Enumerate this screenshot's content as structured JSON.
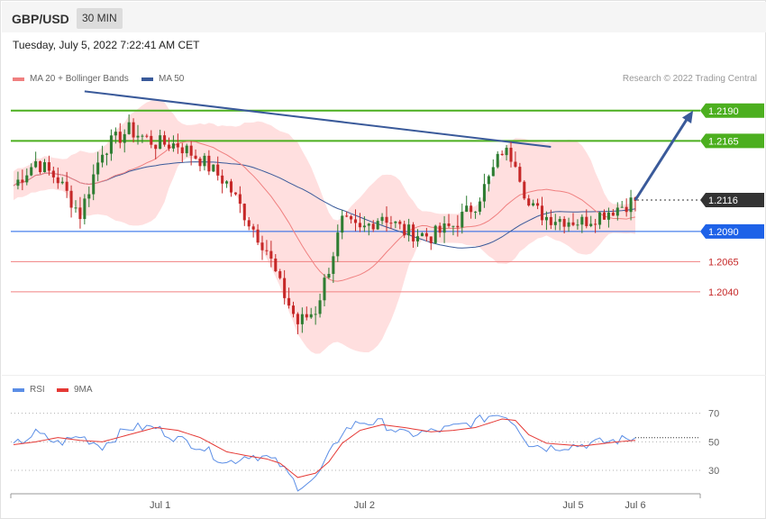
{
  "header": {
    "symbol": "GBP/USD",
    "timeframe": "30 MIN",
    "datetime": "Tuesday, July 5, 2022 7:22:41 AM CET"
  },
  "colors": {
    "bull": "#2e7d32",
    "bear": "#c62828",
    "bollinger_fill": "#ffd9d9",
    "ma20": "#f08080",
    "ma50": "#3a5a9a",
    "trendline": "#3a5a9a",
    "resistance": "#4caf1f",
    "current": "#333333",
    "support_primary": "#1e62e8",
    "support_secondary": "#f08080",
    "rsi": "#5b8ee6",
    "rsi_ma": "#e53935"
  },
  "chart_data": [
    {
      "type": "candlestick",
      "name": "GBP/USD 30 MIN",
      "legend": [
        {
          "label": "MA 20 + Bollinger Bands",
          "color": "#f08080"
        },
        {
          "label": "MA 50",
          "color": "#3a5a9a"
        }
      ],
      "credit": "Research © 2022 Trading Central",
      "ylim": [
        1.1975,
        1.221
      ],
      "x_ticks": [
        {
          "label": "Jul 1",
          "index": 33
        },
        {
          "label": "Jul 2",
          "index": 79
        },
        {
          "label": "Jul 5",
          "index": 126
        },
        {
          "label": "Jul 6",
          "index": 140
        }
      ],
      "candles_count": 140,
      "levels": [
        {
          "value": 1.219,
          "label": "1.2190",
          "kind": "resistance"
        },
        {
          "value": 1.2165,
          "label": "1.2165",
          "kind": "resistance"
        },
        {
          "value": 1.2116,
          "label": "1.2116",
          "kind": "current"
        },
        {
          "value": 1.209,
          "label": "1.2090",
          "kind": "support_primary"
        },
        {
          "value": 1.2065,
          "label": "1.2065",
          "kind": "support_secondary"
        },
        {
          "value": 1.204,
          "label": "1.2040",
          "kind": "support_secondary"
        }
      ],
      "trendline": {
        "from": {
          "index": 16,
          "value": 1.2206
        },
        "to": {
          "index": 121,
          "value": 1.216
        }
      },
      "projection_arrow": {
        "from": {
          "index": 140,
          "value": 1.2116
        },
        "to": {
          "index": 153,
          "value": 1.219
        }
      },
      "price_path": [
        [
          0,
          1.2128
        ],
        [
          5,
          1.2148
        ],
        [
          10,
          1.2133
        ],
        [
          15,
          1.2104
        ],
        [
          20,
          1.2158
        ],
        [
          26,
          1.2174
        ],
        [
          32,
          1.2163
        ],
        [
          37,
          1.2162
        ],
        [
          42,
          1.215
        ],
        [
          48,
          1.213
        ],
        [
          53,
          1.2098
        ],
        [
          57,
          1.2075
        ],
        [
          60,
          1.2045
        ],
        [
          64,
          1.2014
        ],
        [
          68,
          1.2025
        ],
        [
          71,
          1.206
        ],
        [
          74,
          1.2098
        ],
        [
          78,
          1.209
        ],
        [
          83,
          1.2104
        ],
        [
          88,
          1.209
        ],
        [
          94,
          1.2086
        ],
        [
          99,
          1.2095
        ],
        [
          104,
          1.2113
        ],
        [
          107,
          1.2133
        ],
        [
          110,
          1.2157
        ],
        [
          113,
          1.215
        ],
        [
          116,
          1.2111
        ],
        [
          120,
          1.2102
        ],
        [
          128,
          1.2098
        ],
        [
          136,
          1.211
        ],
        [
          140,
          1.2116
        ]
      ]
    },
    {
      "type": "line",
      "name": "RSI",
      "legend": [
        {
          "label": "RSI",
          "color": "#5b8ee6"
        },
        {
          "label": "9MA",
          "color": "#e53935"
        }
      ],
      "ylim": [
        18,
        78
      ],
      "y_ticks": [
        70,
        50,
        30
      ],
      "series": [
        {
          "name": "RSI",
          "points": [
            [
              0,
              47
            ],
            [
              5,
              56
            ],
            [
              10,
              49
            ],
            [
              15,
              54
            ],
            [
              20,
              47
            ],
            [
              26,
              60
            ],
            [
              32,
              60
            ],
            [
              37,
              52
            ],
            [
              42,
              47
            ],
            [
              48,
              35
            ],
            [
              53,
              41
            ],
            [
              57,
              39
            ],
            [
              60,
              34
            ],
            [
              64,
              19
            ],
            [
              68,
              24
            ],
            [
              71,
              40
            ],
            [
              74,
              57
            ],
            [
              78,
              64
            ],
            [
              83,
              63
            ],
            [
              88,
              55
            ],
            [
              94,
              57
            ],
            [
              99,
              60
            ],
            [
              104,
              64
            ],
            [
              107,
              68
            ],
            [
              110,
              70
            ],
            [
              113,
              63
            ],
            [
              116,
              49
            ],
            [
              120,
              46
            ],
            [
              128,
              48
            ],
            [
              136,
              51
            ],
            [
              140,
              53
            ]
          ]
        },
        {
          "name": "9MA",
          "points": [
            [
              0,
              48
            ],
            [
              5,
              50
            ],
            [
              10,
              53
            ],
            [
              15,
              51
            ],
            [
              20,
              50
            ],
            [
              26,
              55
            ],
            [
              32,
              60
            ],
            [
              37,
              58
            ],
            [
              42,
              53
            ],
            [
              48,
              43
            ],
            [
              53,
              40
            ],
            [
              57,
              38
            ],
            [
              60,
              35
            ],
            [
              64,
              25
            ],
            [
              68,
              28
            ],
            [
              71,
              36
            ],
            [
              74,
              49
            ],
            [
              78,
              58
            ],
            [
              83,
              62
            ],
            [
              88,
              60
            ],
            [
              94,
              57
            ],
            [
              99,
              58
            ],
            [
              104,
              60
            ],
            [
              107,
              63
            ],
            [
              110,
              66
            ],
            [
              113,
              65
            ],
            [
              116,
              55
            ],
            [
              120,
              49
            ],
            [
              128,
              47
            ],
            [
              136,
              50
            ],
            [
              140,
              51
            ]
          ]
        }
      ]
    }
  ]
}
